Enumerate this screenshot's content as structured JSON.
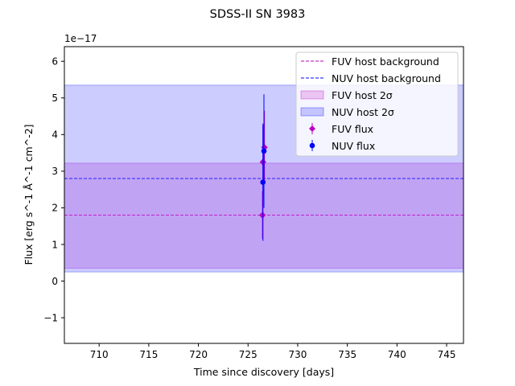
{
  "chart_data": {
    "type": "scatter",
    "title": "SDSS-II SN 3983",
    "xlabel": "Time since discovery [days]",
    "ylabel": "Flux [erg s^-1 Å^-1 cm^-2]",
    "y_offset_label": "1e−17",
    "y_scale": 1e-17,
    "xlim": [
      706.5,
      746.7
    ],
    "ylim": [
      -1.7,
      6.4
    ],
    "x_ticks": [
      710,
      715,
      720,
      725,
      730,
      735,
      740,
      745
    ],
    "y_ticks": [
      -1,
      0,
      1,
      2,
      3,
      4,
      5,
      6
    ],
    "x_tick_labels": [
      "710",
      "715",
      "720",
      "725",
      "730",
      "735",
      "740",
      "745"
    ],
    "y_tick_labels": [
      "−1",
      "0",
      "1",
      "2",
      "3",
      "4",
      "5",
      "6"
    ],
    "grid": false,
    "legend_placement": "top-right",
    "bands": [
      {
        "name": "FUV host 2σ",
        "y_low": 0.35,
        "y_high": 3.22,
        "color": "#bf00bf",
        "alpha": 0.2
      },
      {
        "name": "NUV host 2σ",
        "y_low": 0.25,
        "y_high": 5.35,
        "color": "#0000ff",
        "alpha": 0.2
      }
    ],
    "background_lines": [
      {
        "name": "FUV host background",
        "y": 1.8,
        "color": "#bf00bf"
      },
      {
        "name": "NUV host background",
        "y": 2.8,
        "color": "#0000ff"
      }
    ],
    "series": [
      {
        "name": "FUV flux",
        "marker": "diamond",
        "color": "#bf00bf",
        "points": [
          {
            "x": 726.45,
            "y": 1.8,
            "err": 0.65
          },
          {
            "x": 726.5,
            "y": 3.25,
            "err": 1.0
          },
          {
            "x": 726.65,
            "y": 3.65,
            "err": 1.0
          }
        ]
      },
      {
        "name": "NUV flux",
        "marker": "circle",
        "color": "#0000ff",
        "points": [
          {
            "x": 726.5,
            "y": 2.7,
            "err": 1.6
          },
          {
            "x": 726.6,
            "y": 3.55,
            "err": 1.55
          }
        ]
      }
    ]
  }
}
